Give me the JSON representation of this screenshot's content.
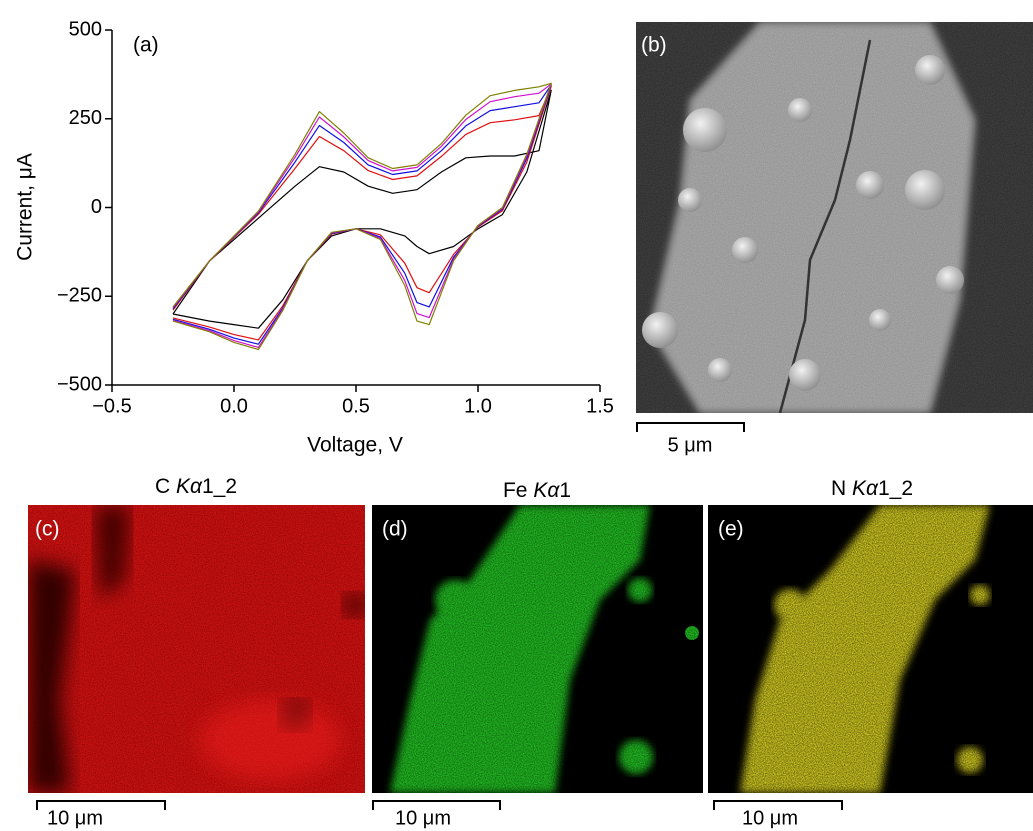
{
  "chart_data": {
    "type": "line",
    "panel_label": "(a)",
    "xlabel": "Voltage, V",
    "ylabel": "Current, μA",
    "xlim": [
      -0.5,
      1.5
    ],
    "ylim": [
      -500,
      500
    ],
    "xticks": [
      {
        "value": -0.5,
        "label": "−0.5"
      },
      {
        "value": 0,
        "label": "0.0"
      },
      0.5,
      {
        "value": 1,
        "label": "1.0"
      },
      1.5
    ],
    "yticks": [
      500,
      250,
      0,
      {
        "value": -250,
        "label": "−250"
      },
      {
        "value": -500,
        "label": "−500"
      }
    ],
    "x": [
      -0.25,
      -0.1,
      0.1,
      0.25,
      0.35,
      0.45,
      0.55,
      0.65,
      0.75,
      0.85,
      0.95,
      1.05,
      1.15,
      1.25,
      1.3,
      1.3,
      1.2,
      1.1,
      1.0,
      0.9,
      0.8,
      0.75,
      0.7,
      0.6,
      0.5,
      0.4,
      0.3,
      0.2,
      0.1,
      0.0,
      -0.1,
      -0.25
    ],
    "series": [
      {
        "color": "#000000",
        "values": [
          -300,
          -150,
          -30,
          60,
          115,
          100,
          60,
          40,
          50,
          100,
          140,
          145,
          145,
          160,
          330,
          330,
          100,
          -20,
          -60,
          -110,
          -130,
          -110,
          -80,
          -60,
          -60,
          -80,
          -150,
          -260,
          -340,
          -330,
          -320,
          -300
        ]
      },
      {
        "color": "#e01010",
        "values": [
          -289,
          -150,
          -19,
          110,
          200,
          160,
          104,
          79,
          89,
          144,
          206,
          239,
          247,
          259,
          341,
          341,
          128,
          -9,
          -55,
          -132,
          -240,
          -226,
          -157,
          -77,
          -60,
          -75,
          -150,
          -277,
          -373,
          -358,
          -337,
          -311
        ]
      },
      {
        "color": "#1010e0",
        "values": [
          -285,
          -150,
          -15,
          128,
          231,
          183,
          120,
          93,
          103,
          160,
          230,
          273,
          284,
          295,
          345,
          345,
          138,
          -5,
          -53,
          -140,
          -280,
          -268,
          -185,
          -83,
          -60,
          -73,
          -150,
          -283,
          -385,
          -368,
          -343,
          -315
        ]
      },
      {
        "color": "#d010d0",
        "values": [
          -282,
          -150,
          -12,
          141,
          255,
          199,
          132,
          103,
          113,
          172,
          248,
          298,
          312,
          322,
          348,
          348,
          145,
          -2,
          -51,
          -146,
          -310,
          -299,
          -206,
          -87,
          -60,
          -71,
          -150,
          -287,
          -394,
          -375,
          -347,
          -318
        ]
      },
      {
        "color": "#808000",
        "values": [
          -280,
          -150,
          -10,
          150,
          270,
          210,
          140,
          110,
          120,
          180,
          260,
          315,
          330,
          340,
          350,
          350,
          150,
          0,
          -50,
          -150,
          -330,
          -320,
          -220,
          -90,
          -60,
          -70,
          -150,
          -290,
          -400,
          -380,
          -350,
          -320
        ]
      }
    ]
  },
  "panels": [
    {
      "label": "(b)",
      "scale_bar": "5 μm"
    },
    {
      "label": "(c)",
      "title": {
        "element": "C",
        "line": "Kα",
        "suffix": "1_2"
      },
      "scale_bar": "10 μm"
    },
    {
      "label": "(d)",
      "title": {
        "element": "Fe",
        "line": "Kα",
        "suffix": "1"
      },
      "scale_bar": "10 μm"
    },
    {
      "label": "(e)",
      "title": {
        "element": "N",
        "line": "Kα",
        "suffix": "1_2"
      },
      "scale_bar": "10 μm"
    }
  ]
}
